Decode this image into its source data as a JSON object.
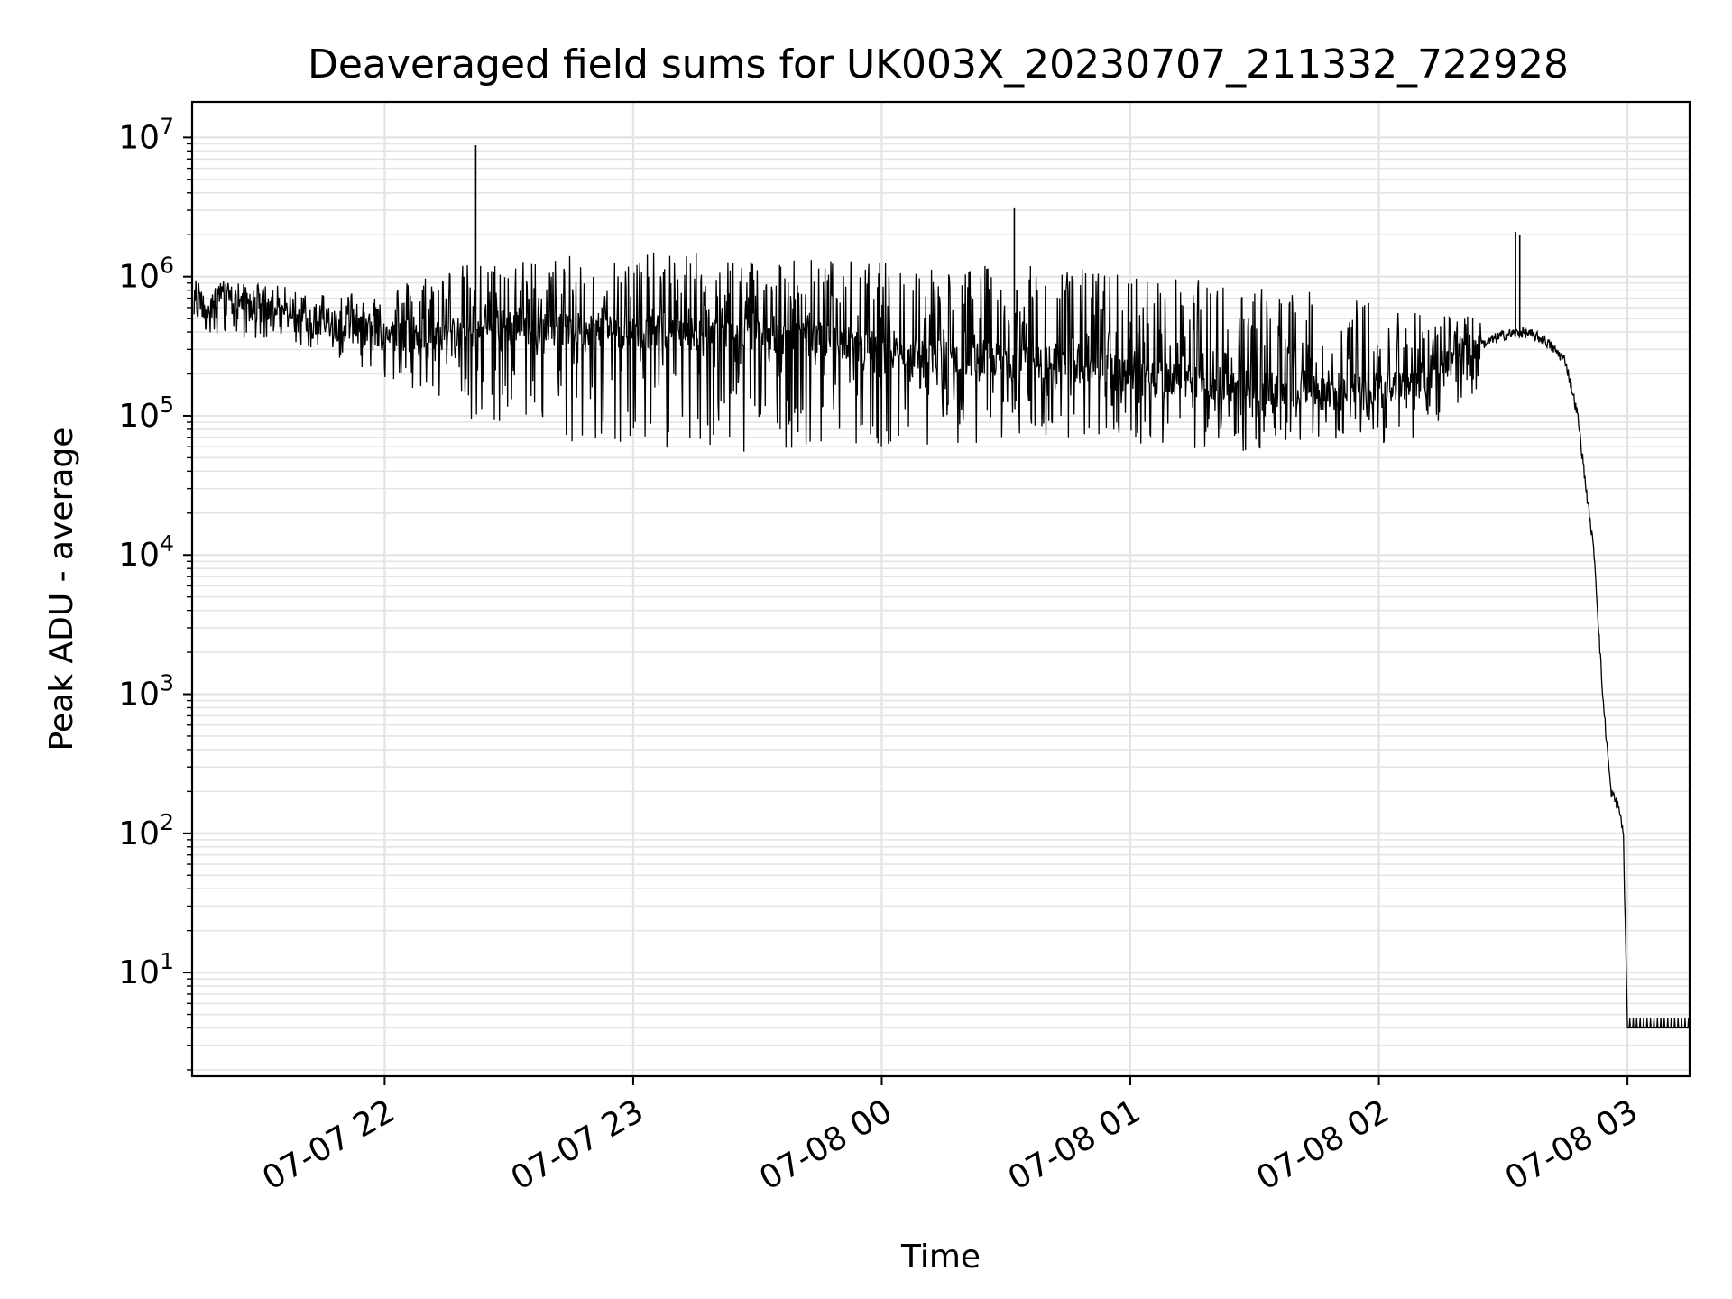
{
  "chart_data": {
    "type": "line",
    "title": "Deaveraged field sums for UK003X_20230707_211332_722928",
    "xlabel": "Time",
    "ylabel": "Peak ADU - average",
    "y_scale": "log",
    "ylim": [
      1.8,
      18000000
    ],
    "xlim": [
      "2023-07-07 21:13:32",
      "2023-07-08 03:15:00"
    ],
    "grid": true,
    "grid_minor": true,
    "x_tick_labels": [
      "07-07 22",
      "07-07 23",
      "07-08 00",
      "07-08 01",
      "07-08 02",
      "07-08 03"
    ],
    "x_ticks": [
      "2023-07-07 22:00",
      "2023-07-07 23:00",
      "2023-07-08 00:00",
      "2023-07-08 01:00",
      "2023-07-08 02:00",
      "2023-07-08 03:00"
    ],
    "y_tick_labels": [
      {
        "base": "10",
        "exp": "1",
        "value": 10
      },
      {
        "base": "10",
        "exp": "2",
        "value": 100
      },
      {
        "base": "10",
        "exp": "3",
        "value": 1000
      },
      {
        "base": "10",
        "exp": "4",
        "value": 10000
      },
      {
        "base": "10",
        "exp": "5",
        "value": 100000
      },
      {
        "base": "10",
        "exp": "6",
        "value": 1000000
      },
      {
        "base": "10",
        "exp": "7",
        "value": 10000000
      }
    ],
    "line_color": "#000000",
    "series": [
      {
        "x": [
          "2023-07-07 21:14",
          "2023-07-07 21:20",
          "2023-07-07 21:30",
          "2023-07-07 21:40",
          "2023-07-07 21:50",
          "2023-07-07 22:00",
          "2023-07-07 22:10",
          "2023-07-07 22:20",
          "2023-07-07 22:30",
          "2023-07-07 22:40",
          "2023-07-07 22:50",
          "2023-07-07 23:00",
          "2023-07-07 23:10",
          "2023-07-07 23:20",
          "2023-07-07 23:30",
          "2023-07-07 23:40",
          "2023-07-07 23:50",
          "2023-07-08 00:00",
          "2023-07-08 00:10",
          "2023-07-08 00:20",
          "2023-07-08 00:30",
          "2023-07-08 00:40",
          "2023-07-08 00:50",
          "2023-07-08 01:00",
          "2023-07-08 01:10",
          "2023-07-08 01:20",
          "2023-07-08 01:30",
          "2023-07-08 01:40",
          "2023-07-08 01:50",
          "2023-07-08 02:00",
          "2023-07-08 02:10",
          "2023-07-08 02:20",
          "2023-07-08 02:30",
          "2023-07-08 02:35",
          "2023-07-08 02:40",
          "2023-07-08 02:45",
          "2023-07-08 02:48",
          "2023-07-08 02:50",
          "2023-07-08 02:52",
          "2023-07-08 02:54",
          "2023-07-08 02:56",
          "2023-07-08 02:58",
          "2023-07-08 02:59",
          "2023-07-08 03:00",
          "2023-07-08 03:05",
          "2023-07-08 03:10",
          "2023-07-08 03:15"
        ],
        "y": [
          600000,
          700000,
          600000,
          500000,
          450000,
          400000,
          350000,
          400000,
          450000,
          420000,
          420000,
          400000,
          400000,
          380000,
          380000,
          360000,
          340000,
          300000,
          280000,
          260000,
          250000,
          240000,
          220000,
          200000,
          180000,
          170000,
          160000,
          150000,
          140000,
          140000,
          200000,
          280000,
          380000,
          400000,
          350000,
          250000,
          100000,
          30000,
          10000,
          1000,
          200,
          150,
          100,
          4,
          4,
          4,
          4
        ],
        "spikes": [
          {
            "x": "2023-07-07 22:22",
            "y": 8800000
          },
          {
            "x": "2023-07-08 00:32",
            "y": 3100000
          },
          {
            "x": "2023-07-08 02:33",
            "y": 2100000
          },
          {
            "x": "2023-07-08 02:34",
            "y": 2000000
          }
        ],
        "envelope_high": [
          1000000,
          900000,
          800000,
          800000,
          1200000,
          1300000,
          1400000,
          1500000,
          1500000,
          1500000,
          1400000,
          1300000,
          1300000,
          1200000,
          1200000,
          1100000,
          1000000,
          900000,
          800000,
          700000,
          600000,
          500000
        ],
        "envelope_low": [
          400000,
          350000,
          300000,
          200000,
          100000,
          70000,
          60000,
          55000,
          55000,
          55000,
          60000,
          60000,
          60000,
          60000,
          65000,
          65000,
          60000,
          55000,
          55000,
          60000,
          70000,
          150000
        ]
      }
    ]
  }
}
